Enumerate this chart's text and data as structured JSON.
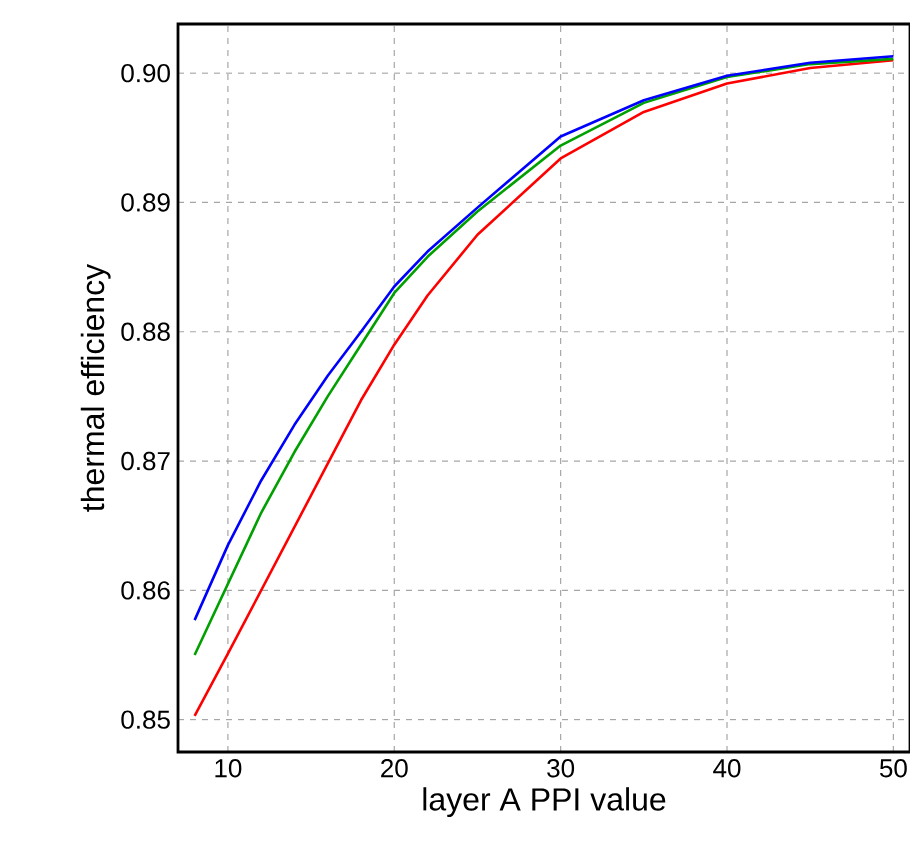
{
  "chart_data": {
    "type": "line",
    "xlabel": "layer A PPI value",
    "ylabel": "thermal efficiency",
    "xlim": [
      7,
      51
    ],
    "ylim": [
      0.8475,
      0.9038
    ],
    "xticks": [
      10,
      20,
      30,
      40,
      50
    ],
    "yticks": [
      {
        "value": 0.85,
        "label": "0.85"
      },
      {
        "value": 0.86,
        "label": "0.86"
      },
      {
        "value": 0.87,
        "label": "0.87"
      },
      {
        "value": 0.88,
        "label": "0.88"
      },
      {
        "value": 0.89,
        "label": "0.89"
      },
      {
        "value": 0.9,
        "label": "0.90"
      }
    ],
    "grid": true,
    "line_style": "solid",
    "x": [
      8,
      10,
      12,
      14,
      16,
      18,
      20,
      22,
      25,
      30,
      35,
      40,
      45,
      50
    ],
    "series": [
      {
        "color": "#ff0000",
        "values": [
          0.8503,
          0.8551,
          0.86,
          0.8649,
          0.8698,
          0.8747,
          0.879,
          0.8828,
          0.8875,
          0.8934,
          0.897,
          0.8992,
          0.9004,
          0.901
        ]
      },
      {
        "color": "#00a000",
        "values": [
          0.855,
          0.8605,
          0.866,
          0.8707,
          0.875,
          0.879,
          0.883,
          0.8858,
          0.8893,
          0.8944,
          0.8977,
          0.8997,
          0.9007,
          0.9011
        ]
      },
      {
        "color": "#0000ff",
        "values": [
          0.8577,
          0.8635,
          0.8685,
          0.8728,
          0.8766,
          0.88,
          0.8835,
          0.8862,
          0.8896,
          0.8951,
          0.8979,
          0.8998,
          0.9008,
          0.9013
        ]
      }
    ]
  }
}
